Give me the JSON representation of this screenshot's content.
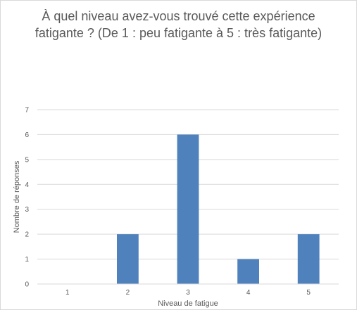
{
  "chart_data": {
    "type": "bar",
    "title_lines": [
      "À quel niveau avez-vous trouvé cette expérience",
      "fatigante ? (De 1 : peu fatigante à 5 : très fatigante)"
    ],
    "xlabel": "Niveau de fatigue",
    "ylabel": "Nombre de réponses",
    "categories": [
      "1",
      "2",
      "3",
      "4",
      "5"
    ],
    "values": [
      0,
      2,
      6,
      1,
      2
    ],
    "ylim": [
      0,
      7
    ],
    "yticks": [
      "0",
      "1",
      "2",
      "3",
      "4",
      "5",
      "6",
      "7"
    ],
    "grid": true,
    "legend": "none",
    "bar_color": "#4f81bd",
    "grid_color": "#d9d9d9"
  }
}
